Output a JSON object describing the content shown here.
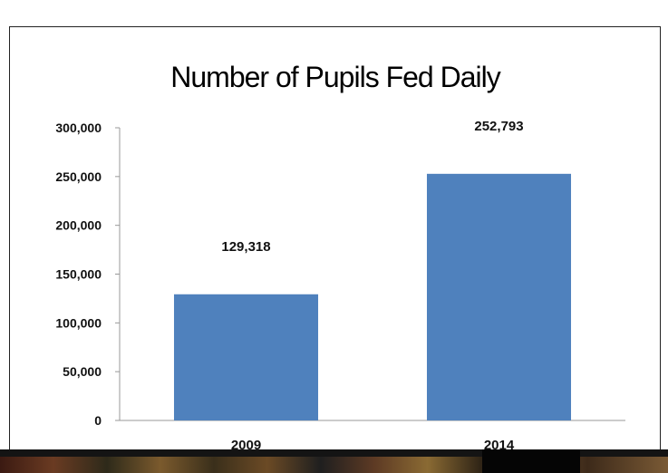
{
  "chart_data": {
    "type": "bar",
    "title": "Number of Pupils Fed Daily",
    "categories": [
      "2009",
      "2014"
    ],
    "values": [
      129318,
      252793
    ],
    "value_labels": [
      "129,318",
      "252,793"
    ],
    "ylim": [
      0,
      300000
    ],
    "yticks": [
      0,
      50000,
      100000,
      150000,
      200000,
      250000,
      300000
    ],
    "ytick_labels": [
      "0",
      "50,000",
      "100,000",
      "150,000",
      "200,000",
      "250,000",
      "300,000"
    ],
    "bar_color": "#4f81bd",
    "grid": false,
    "legend": "none",
    "xlabel": "",
    "ylabel": ""
  }
}
